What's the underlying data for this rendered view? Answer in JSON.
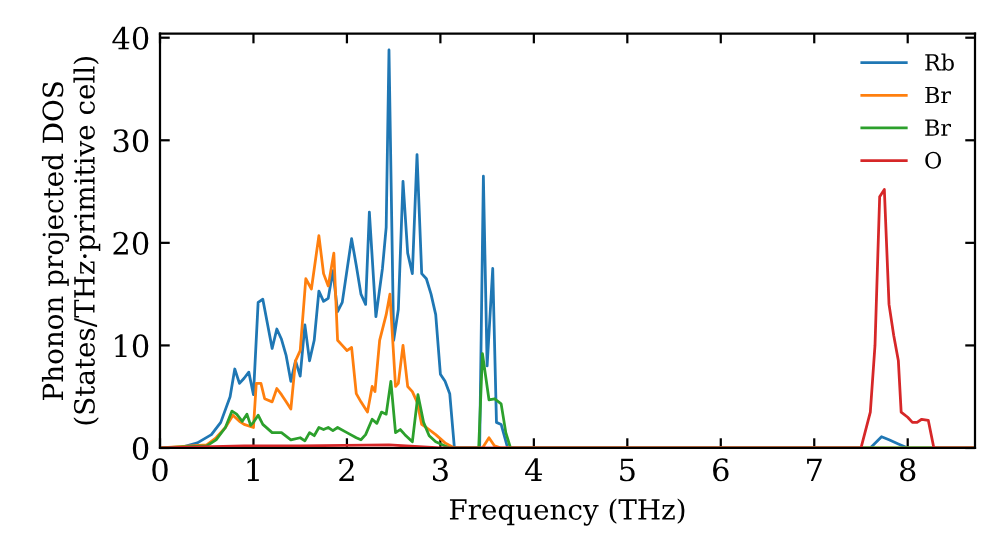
{
  "chart_data": {
    "type": "line",
    "xlabel": "Frequency (THz)",
    "ylabel": "Phonon projected DOS\n(States/THz·primitive cell)",
    "xlim": [
      0,
      8.72
    ],
    "ylim": [
      0,
      40.4
    ],
    "xticks": [
      0,
      1,
      2,
      3,
      4,
      5,
      6,
      7,
      8
    ],
    "yticks": [
      0,
      10,
      20,
      30,
      40
    ],
    "legend": "top right",
    "grid": false,
    "line_style": "solid",
    "marker": "none",
    "series": [
      {
        "name": "Rb",
        "color": "#1f77b4",
        "x": [
          0,
          0.2,
          0.4,
          0.55,
          0.65,
          0.75,
          0.8,
          0.85,
          0.9,
          0.95,
          1.0,
          1.05,
          1.1,
          1.2,
          1.25,
          1.3,
          1.35,
          1.4,
          1.45,
          1.5,
          1.55,
          1.6,
          1.65,
          1.7,
          1.75,
          1.8,
          1.85,
          1.9,
          1.95,
          2.05,
          2.1,
          2.15,
          2.2,
          2.24,
          2.31,
          2.38,
          2.42,
          2.45,
          2.5,
          2.55,
          2.6,
          2.65,
          2.7,
          2.75,
          2.8,
          2.85,
          2.9,
          2.95,
          3.0,
          3.05,
          3.1,
          3.15,
          3.42,
          3.46,
          3.5,
          3.56,
          3.6,
          3.65,
          3.72,
          7.6,
          7.72,
          7.8,
          7.9,
          8.0,
          8.72
        ],
        "values": [
          0,
          0,
          0.5,
          1.3,
          2.5,
          5,
          7.7,
          6.3,
          6.8,
          7.4,
          5.2,
          14.2,
          14.5,
          9.7,
          11.6,
          10.6,
          9.0,
          6.5,
          8.5,
          7.0,
          12,
          8.5,
          10.5,
          15.3,
          14.3,
          14.6,
          17.3,
          13.3,
          14.2,
          20.4,
          17.8,
          15.0,
          14.0,
          23,
          12.8,
          17.5,
          21.5,
          38.8,
          10.5,
          13.5,
          26,
          19,
          17,
          28.6,
          17,
          16.5,
          15,
          13,
          7.2,
          6.5,
          5.3,
          0,
          0,
          26.5,
          8,
          17.5,
          2.5,
          2.3,
          0,
          0,
          1.1,
          0.8,
          0.4,
          0,
          0
        ]
      },
      {
        "name": "Br",
        "color": "#ff7f0e",
        "x": [
          0,
          0.5,
          0.6,
          0.7,
          0.78,
          0.85,
          0.9,
          1.0,
          1.03,
          1.08,
          1.12,
          1.2,
          1.25,
          1.3,
          1.35,
          1.4,
          1.45,
          1.5,
          1.56,
          1.62,
          1.7,
          1.75,
          1.8,
          1.86,
          1.9,
          1.95,
          2.0,
          2.05,
          2.1,
          2.15,
          2.22,
          2.27,
          2.3,
          2.35,
          2.42,
          2.46,
          2.52,
          2.55,
          2.6,
          2.65,
          2.7,
          2.75,
          2.8,
          2.85,
          2.95,
          3.05,
          3.15,
          3.45,
          3.52,
          3.58,
          3.65,
          8.72
        ],
        "values": [
          0,
          0.3,
          1,
          2,
          3.2,
          2.6,
          2.3,
          2.0,
          6.3,
          6.3,
          4.8,
          4.5,
          5.8,
          5.2,
          4.5,
          3.8,
          8.5,
          9.5,
          16.5,
          15.5,
          20.7,
          17,
          15.8,
          19,
          10.5,
          10,
          9.5,
          9.8,
          5.3,
          4.5,
          3.5,
          6,
          5.5,
          10.5,
          13,
          15,
          6,
          6.3,
          10,
          6,
          5.5,
          4.5,
          2.3,
          2.0,
          1.3,
          0.5,
          0,
          0,
          1,
          0.2,
          0,
          0
        ]
      },
      {
        "name": "Br",
        "color": "#2ca02c",
        "x": [
          0,
          0.5,
          0.6,
          0.7,
          0.77,
          0.82,
          0.88,
          0.93,
          0.97,
          1.0,
          1.05,
          1.1,
          1.2,
          1.3,
          1.4,
          1.5,
          1.55,
          1.6,
          1.65,
          1.7,
          1.75,
          1.8,
          1.85,
          1.9,
          2.0,
          2.1,
          2.15,
          2.2,
          2.27,
          2.32,
          2.37,
          2.42,
          2.47,
          2.52,
          2.57,
          2.62,
          2.7,
          2.76,
          2.82,
          2.88,
          2.95,
          3.05,
          3.1,
          3.41,
          3.45,
          3.52,
          3.58,
          3.65,
          3.7,
          3.75,
          8.72
        ],
        "values": [
          0,
          0.2,
          0.8,
          2,
          3.6,
          3.3,
          2.6,
          3.3,
          2.2,
          2.5,
          3.2,
          2.3,
          1.5,
          1.5,
          0.8,
          1.0,
          0.7,
          1.5,
          1.2,
          2.0,
          1.8,
          2.0,
          1.7,
          2.0,
          1.5,
          1.0,
          0.8,
          1.3,
          2.8,
          2.4,
          3.5,
          3.3,
          6.5,
          1.5,
          1.8,
          1.3,
          0.6,
          5.2,
          2.5,
          1.2,
          0.6,
          0.2,
          0,
          0,
          9.2,
          4.7,
          4.8,
          4.3,
          1.5,
          0,
          0
        ]
      },
      {
        "name": "O",
        "color": "#d62728",
        "x": [
          0,
          0.9,
          1.5,
          2.45,
          3.0,
          7.5,
          7.6,
          7.65,
          7.7,
          7.75,
          7.8,
          7.85,
          7.9,
          7.93,
          8.0,
          8.05,
          8.1,
          8.15,
          8.22,
          8.28,
          8.72
        ],
        "values": [
          0,
          0.2,
          0.2,
          0.3,
          0,
          0,
          3.5,
          10,
          24.5,
          25.2,
          14,
          11,
          8.5,
          3.5,
          3,
          2.5,
          2.5,
          2.8,
          2.7,
          0,
          0
        ]
      }
    ]
  }
}
